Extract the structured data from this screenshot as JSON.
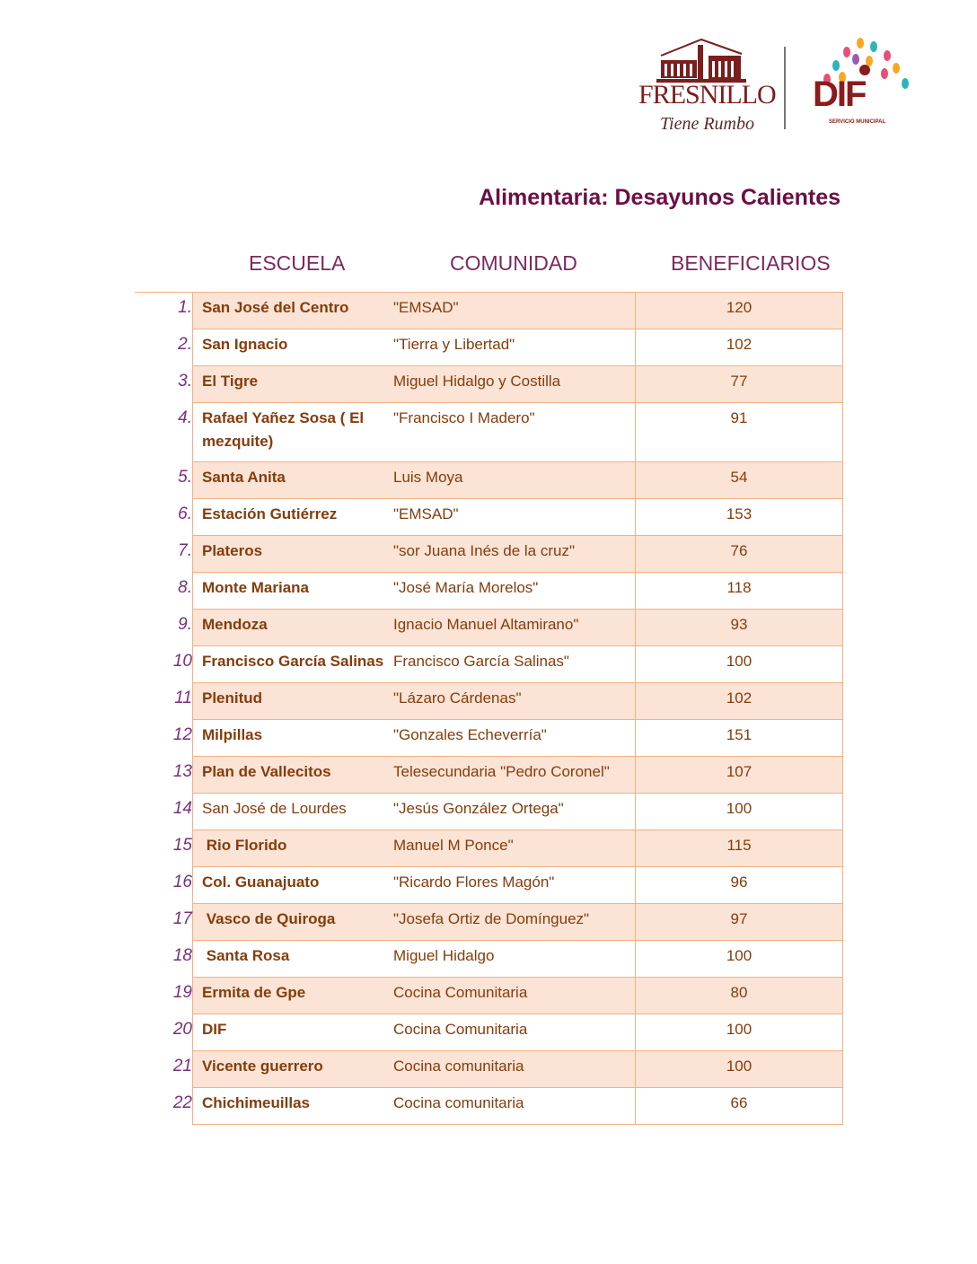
{
  "logos": {
    "fresnillo": {
      "name": "FRESNILLO",
      "tagline": "Tiene Rumbo"
    },
    "dif": {
      "name": "DIF",
      "subtitle": "SERVICIO MUNICIPAL"
    }
  },
  "title": "Alimentaria: Desayunos Calientes",
  "headers": {
    "escuela": "ESCUELA",
    "comunidad": "COMUNIDAD",
    "beneficiarios": "BENEFICIARIOS"
  },
  "colors": {
    "row_shade": "#fbe4d5",
    "border": "#f4b083",
    "text": "#843c0c",
    "title": "#6b0f42"
  },
  "rows": [
    {
      "num": "1.",
      "escuela": "San José del Centro",
      "comunidad": "\"EMSAD\"",
      "beneficiarios": "120",
      "bold": true
    },
    {
      "num": "2.",
      "escuela": "San Ignacio",
      "comunidad": "\"Tierra y Libertad\"",
      "beneficiarios": "102",
      "bold": true
    },
    {
      "num": "3.",
      "escuela": "El Tigre",
      "comunidad": "Miguel Hidalgo y Costilla",
      "beneficiarios": "77",
      "bold": true
    },
    {
      "num": "4.",
      "escuela": "Rafael Yañez Sosa ( El mezquite)",
      "comunidad": "\"Francisco I Madero\"",
      "beneficiarios": "91",
      "bold": true
    },
    {
      "num": "5.",
      "escuela": "Santa Anita",
      "comunidad": "Luis Moya",
      "beneficiarios": "54",
      "bold": true
    },
    {
      "num": "6.",
      "escuela": "Estación Gutiérrez",
      "comunidad": "\"EMSAD\"",
      "beneficiarios": "153",
      "bold": true
    },
    {
      "num": "7.",
      "escuela": "Plateros",
      "comunidad": "\"sor Juana Inés de la cruz\"",
      "beneficiarios": "76",
      "bold": true
    },
    {
      "num": "8.",
      "escuela": "Monte Mariana",
      "comunidad": "\"José María Morelos\"",
      "beneficiarios": "118",
      "bold": true
    },
    {
      "num": "9.",
      "escuela": "Mendoza",
      "comunidad": "Ignacio Manuel Altamirano\"",
      "beneficiarios": "93",
      "bold": true
    },
    {
      "num": "10",
      "escuela": "Francisco García Salinas",
      "comunidad": "Francisco García Salinas\"",
      "beneficiarios": "100",
      "bold": true
    },
    {
      "num": "11",
      "escuela": "Plenitud",
      "comunidad": "\"Lázaro Cárdenas\"",
      "beneficiarios": "102",
      "bold": true
    },
    {
      "num": "12",
      "escuela": "Milpillas",
      "comunidad": "\"Gonzales Echeverría\"",
      "beneficiarios": "151",
      "bold": true
    },
    {
      "num": "13",
      "escuela": "Plan de Vallecitos",
      "comunidad": "Telesecundaria \"Pedro Coronel\"",
      "beneficiarios": "107",
      "bold": true
    },
    {
      "num": "14",
      "escuela": "San José de Lourdes",
      "comunidad": "\"Jesús González Ortega\"",
      "beneficiarios": "100",
      "bold": false
    },
    {
      "num": "15",
      "escuela": " Rio Florido",
      "comunidad": "Manuel M Ponce\"",
      "beneficiarios": "115",
      "bold": true
    },
    {
      "num": "16",
      "escuela": "Col. Guanajuato",
      "comunidad": "\"Ricardo Flores Magón\"",
      "beneficiarios": "96",
      "bold": true
    },
    {
      "num": "17",
      "escuela": " Vasco de Quiroga",
      "comunidad": "\"Josefa Ortiz de Domínguez\"",
      "beneficiarios": "97",
      "bold": true
    },
    {
      "num": "18",
      "escuela": " Santa Rosa",
      "comunidad": "Miguel Hidalgo",
      "beneficiarios": "100",
      "bold": true
    },
    {
      "num": "19",
      "escuela": "Ermita de Gpe",
      "comunidad": "Cocina Comunitaria",
      "beneficiarios": "80",
      "bold": true
    },
    {
      "num": "20",
      "escuela": "DIF",
      "comunidad": "Cocina Comunitaria",
      "beneficiarios": "100",
      "bold": true
    },
    {
      "num": "21",
      "escuela": "Vicente guerrero",
      "comunidad": "Cocina comunitaria",
      "beneficiarios": "100",
      "bold": true
    },
    {
      "num": "22",
      "escuela": "Chichimeuillas",
      "comunidad": "Cocina comunitaria",
      "beneficiarios": "66",
      "bold": true
    }
  ]
}
